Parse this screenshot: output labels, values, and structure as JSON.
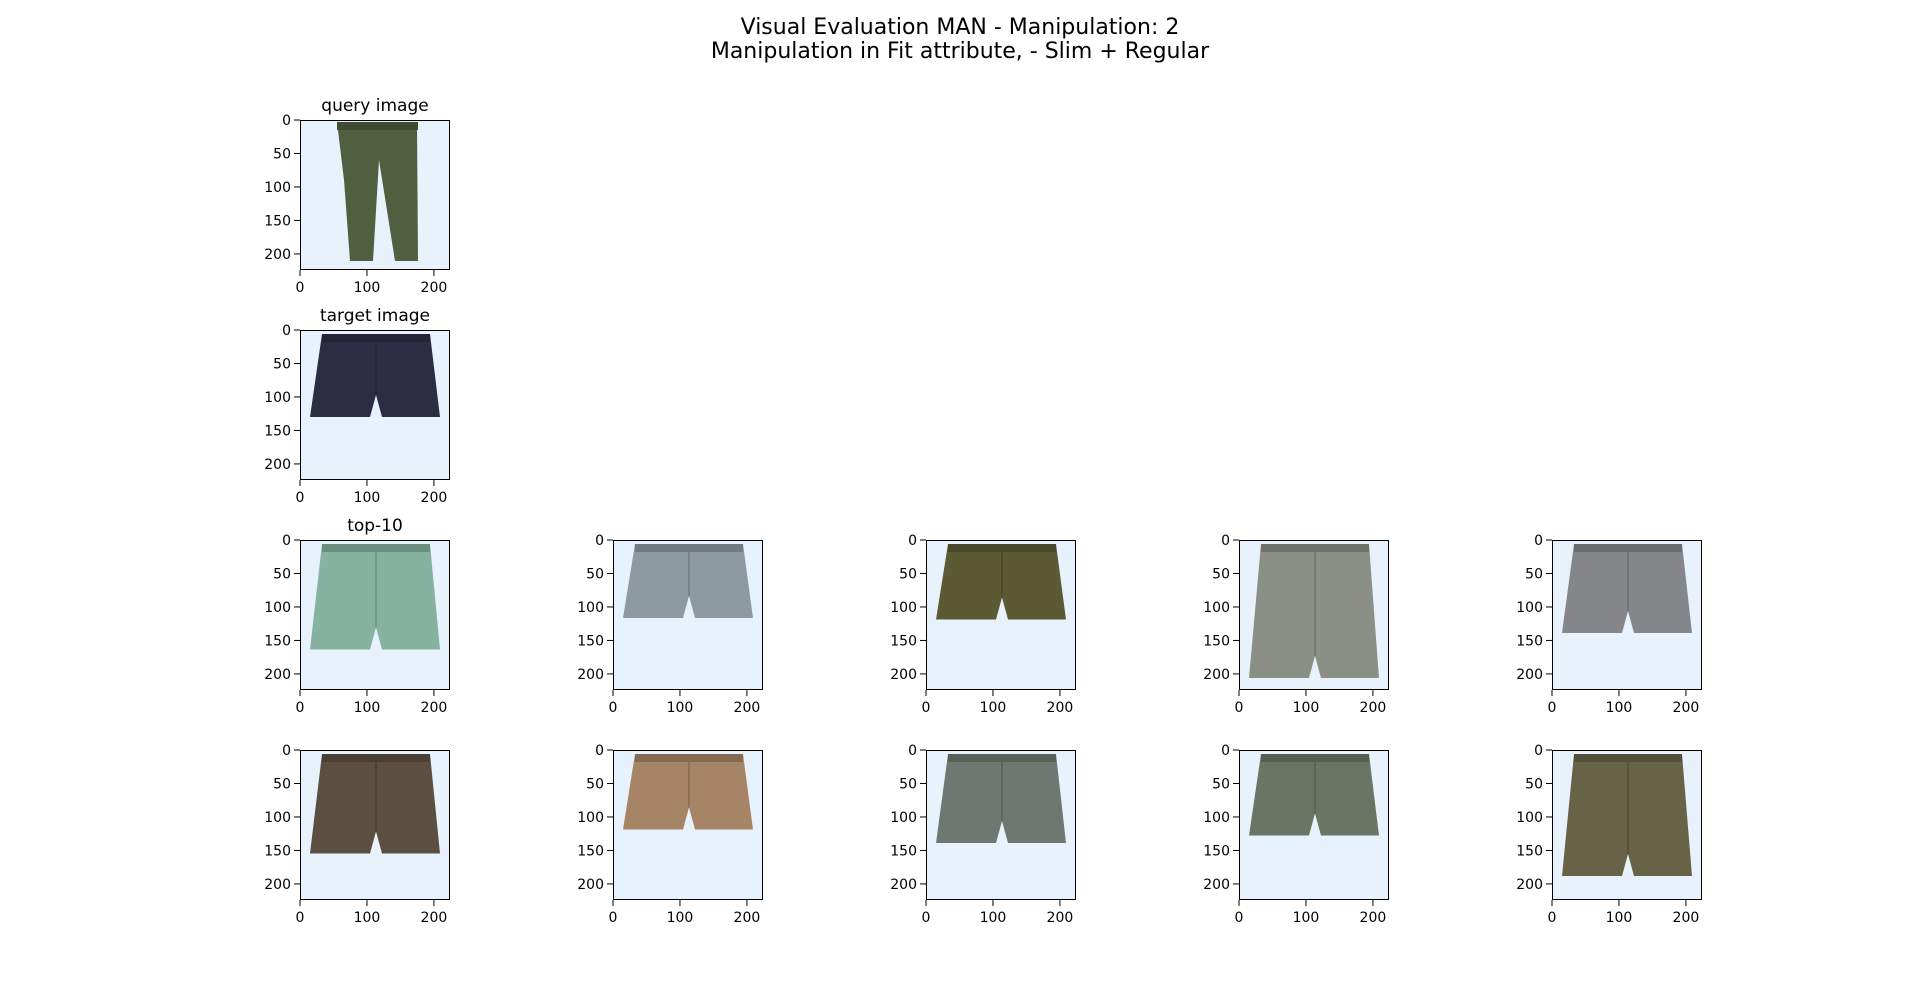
{
  "figure": {
    "title_line1": "Visual Evaluation MAN - Manipulation: 2",
    "title_line2": "Manipulation in Fit attribute, - Slim + Regular"
  },
  "axes": {
    "x_ticks": [
      "0",
      "100",
      "200"
    ],
    "y_ticks": [
      "0",
      "50",
      "100",
      "150",
      "200"
    ]
  },
  "colors": {
    "background": "#e8f2fd",
    "frame": "#000000"
  },
  "panels": [
    {
      "id": "query",
      "title": "query image",
      "item": "long-pants",
      "garment_color": "#4f5f3f",
      "hem": 0.94
    },
    {
      "id": "target",
      "title": "target image",
      "item": "shorts",
      "garment_color": "#2c2d45",
      "hem": 0.58
    },
    {
      "id": "top1",
      "title": "top-10",
      "item": "shorts",
      "garment_color": "#86b39f",
      "hem": 0.73
    },
    {
      "id": "top2",
      "title": "",
      "item": "shorts",
      "garment_color": "#8d9a9f",
      "hem": 0.52
    },
    {
      "id": "top3",
      "title": "",
      "item": "shorts",
      "garment_color": "#5c5a35",
      "hem": 0.53
    },
    {
      "id": "top4",
      "title": "",
      "item": "shorts",
      "garment_color": "#8b8f85",
      "hem": 0.92
    },
    {
      "id": "top5",
      "title": "",
      "item": "shorts",
      "garment_color": "#84868a",
      "hem": 0.62
    },
    {
      "id": "top6",
      "title": "",
      "item": "shorts",
      "garment_color": "#5c4f41",
      "hem": 0.69
    },
    {
      "id": "top7",
      "title": "",
      "item": "shorts",
      "garment_color": "#a68567",
      "hem": 0.53
    },
    {
      "id": "top8",
      "title": "",
      "item": "shorts",
      "garment_color": "#6f7870",
      "hem": 0.62
    },
    {
      "id": "top9",
      "title": "",
      "item": "shorts",
      "garment_color": "#6c7564",
      "hem": 0.57
    },
    {
      "id": "top10",
      "title": "",
      "item": "shorts",
      "garment_color": "#686247",
      "hem": 0.84
    }
  ]
}
